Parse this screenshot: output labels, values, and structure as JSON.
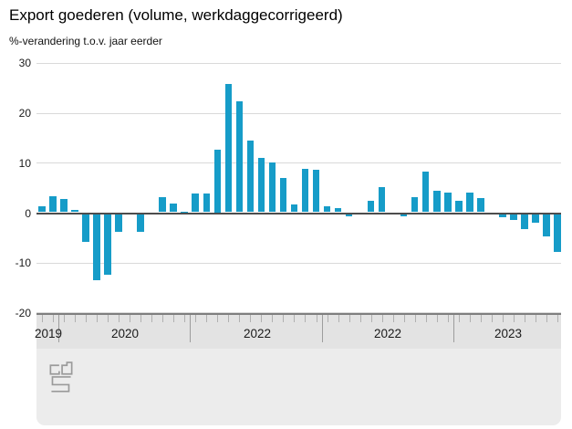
{
  "chart_data": {
    "type": "bar",
    "title": "Export goederen (volume, werkdaggecorrigeerd)",
    "subtitle": "%-verandering t.o.v. jaar eerder",
    "xlabel": "",
    "ylabel": "%-verandering t.o.v. jaar eerder",
    "ylim": [
      -20,
      30
    ],
    "grid": true,
    "legend": false,
    "yticks": [
      30,
      20,
      10,
      0,
      -10,
      -20
    ],
    "year_axis_labels": [
      "2019",
      "2020",
      "2022",
      "2022",
      "2023"
    ],
    "months": [
      "2019-11",
      "2019-12",
      "2020-01",
      "2020-02",
      "2020-03",
      "2020-04",
      "2020-05",
      "2020-06",
      "2020-07",
      "2020-08",
      "2020-09",
      "2020-10",
      "2020-11",
      "2020-12",
      "2021-01",
      "2021-02",
      "2021-03",
      "2021-04",
      "2021-05",
      "2021-06",
      "2021-07",
      "2021-08",
      "2021-09",
      "2021-10",
      "2021-11",
      "2021-12",
      "2022-01",
      "2022-02",
      "2022-03",
      "2022-04",
      "2022-05",
      "2022-06",
      "2022-07",
      "2022-08",
      "2022-09",
      "2022-10",
      "2022-11",
      "2022-12",
      "2023-01",
      "2023-02",
      "2023-03",
      "2023-04",
      "2023-05",
      "2023-06",
      "2023-07",
      "2023-08",
      "2023-09",
      "2023-10"
    ],
    "values": [
      1.1,
      3.2,
      2.7,
      0.4,
      -5.6,
      -13.3,
      -12.2,
      -3.5,
      0,
      -3.6,
      0,
      3.0,
      1.7,
      0.1,
      3.7,
      3.7,
      12.5,
      25.6,
      22.3,
      14.3,
      10.8,
      9.9,
      6.8,
      1.5,
      8.7,
      8.5,
      1.1,
      0.9,
      -0.4,
      0,
      2.3,
      5.1,
      0,
      -0.5,
      3.0,
      8.2,
      4.3,
      4.0,
      2.2,
      3.9,
      2.9,
      0,
      -0.6,
      -1.1,
      -3.1,
      -1.8,
      -4.5,
      -7.6
    ],
    "colors": {
      "bar": "#169cc8",
      "zero_line": "#4d4d4d",
      "gridline": "#d9d9d9",
      "axis_band": "#e3e3e3",
      "logo_panel": "#ececec"
    },
    "logo": "cbs-logo"
  }
}
